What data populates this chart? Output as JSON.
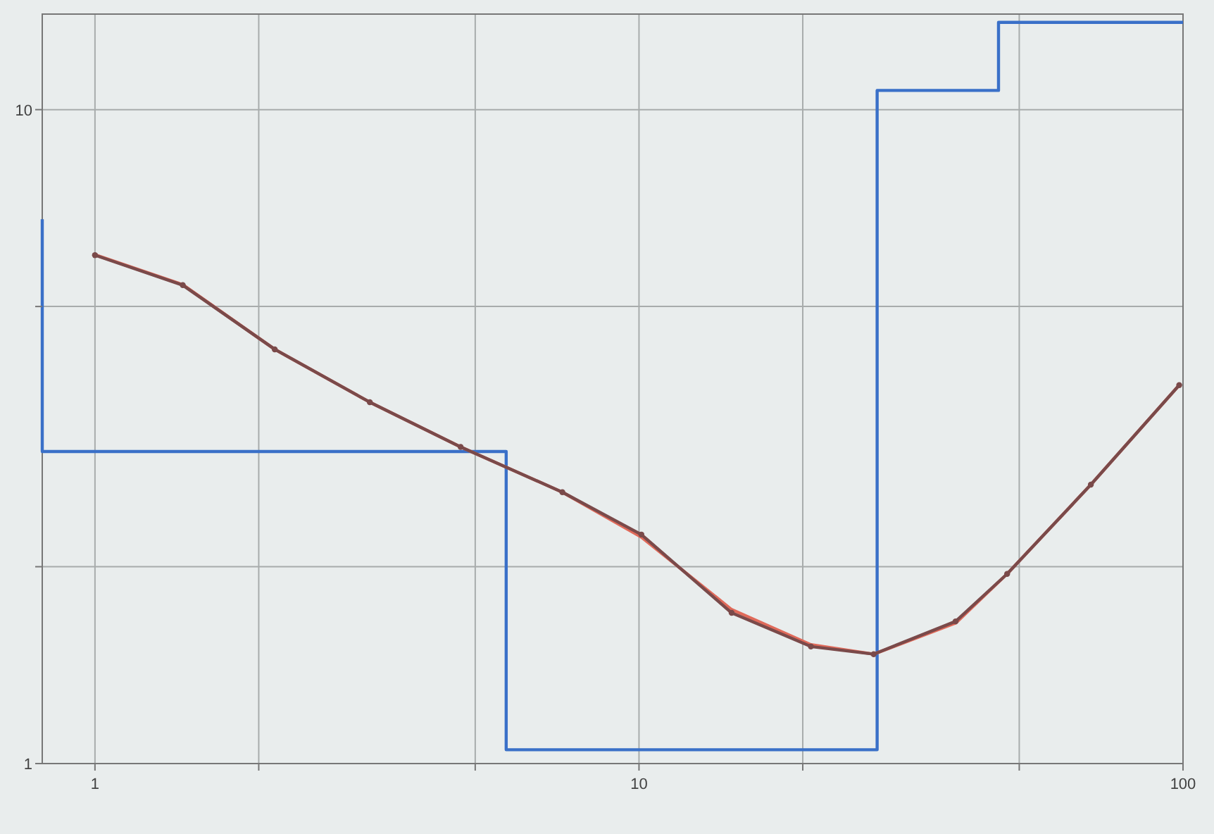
{
  "chart_data": {
    "type": "line",
    "log": "xy",
    "grid": true,
    "marker": "none",
    "line_style": "solid",
    "xlim": [
      0.8,
      100
    ],
    "ylim": [
      1,
      14
    ],
    "xticks": [
      1,
      {
        "value": 2,
        "label": null
      },
      {
        "value": 5,
        "label": null
      },
      10,
      {
        "value": 20,
        "label": null
      },
      {
        "value": 50,
        "label": null
      },
      100
    ],
    "yticks": [
      1,
      {
        "value": 2,
        "label": null
      },
      {
        "value": 5,
        "label": null
      },
      10
    ],
    "series": [
      {
        "type": "step",
        "color": "#3a70c8",
        "x": [
          0.8,
          0.8,
          5.7,
          27.4,
          45.8,
          100
        ],
        "values": [
          6.8,
          3,
          1.05,
          10.7,
          13.6,
          13.6
        ]
      },
      {
        "color": "#e06a5a",
        "x": [
          1,
          1.45,
          2.14,
          3.2,
          4.7,
          7.23,
          10.1,
          14.8,
          20.7,
          27,
          38.2,
          47.5,
          67.7,
          98.4
        ],
        "values": [
          6,
          5.4,
          4.3,
          3.57,
          3.05,
          2.6,
          2.22,
          1.72,
          1.52,
          1.47,
          1.64,
          1.95,
          2.67,
          3.79
        ]
      },
      {
        "color": "#7a4a4a",
        "marker": "circle",
        "x": [
          1,
          1.45,
          2.14,
          3.2,
          4.7,
          7.23,
          10.1,
          14.8,
          20.7,
          27,
          38.2,
          47.5,
          67.7,
          98.4
        ],
        "values": [
          5.99,
          5.39,
          4.3,
          3.57,
          3.05,
          2.6,
          2.24,
          1.7,
          1.51,
          1.47,
          1.65,
          1.95,
          2.67,
          3.79
        ]
      }
    ]
  }
}
